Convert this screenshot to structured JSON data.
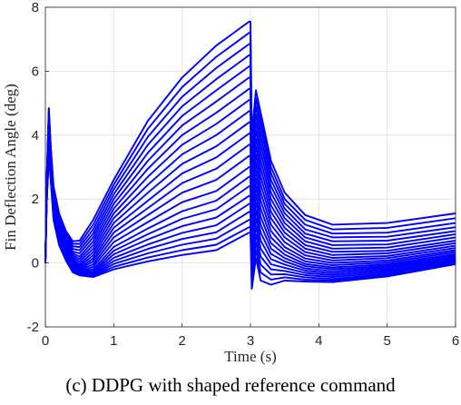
{
  "caption": "(c) DDPG with shaped reference command",
  "chart_data": {
    "type": "line",
    "title": "",
    "xlabel": "Time (s)",
    "ylabel": "Fin Deflection Angle (deg)",
    "xlim": [
      0,
      6
    ],
    "ylim": [
      -2,
      8
    ],
    "xticks": [
      0,
      1,
      2,
      3,
      4,
      5,
      6
    ],
    "yticks": [
      -2,
      0,
      2,
      4,
      6,
      8
    ],
    "grid": true,
    "legend": "none",
    "line_color": "#0000ff",
    "series_count": 22,
    "series_summary": {
      "x_break": 3.0,
      "peak_at_break": [
        1.0,
        7.55
      ],
      "initial_spike_peak": 4.85,
      "second_peak_after_break_max": 5.4,
      "value_at_x6": [
        0.0,
        1.55
      ]
    },
    "x": [
      0,
      0.02,
      0.05,
      0.08,
      0.12,
      0.2,
      0.3,
      0.4,
      0.5,
      0.7,
      1.0,
      1.5,
      2.0,
      2.5,
      2.98,
      3.0,
      3.02,
      3.08,
      3.15,
      3.3,
      3.5,
      3.8,
      4.2,
      5.0,
      6.0
    ],
    "series": [
      {
        "values": [
          0,
          2.6,
          4.85,
          3.6,
          2.4,
          1.55,
          1.0,
          0.68,
          0.7,
          1.35,
          2.6,
          4.45,
          5.8,
          6.8,
          7.55,
          7.55,
          4.0,
          5.4,
          4.7,
          3.2,
          2.2,
          1.5,
          1.2,
          1.25,
          1.55
        ]
      },
      {
        "values": [
          0,
          2.6,
          4.8,
          3.55,
          2.35,
          1.5,
          0.95,
          0.6,
          0.6,
          1.2,
          2.45,
          4.2,
          5.5,
          6.45,
          7.2,
          7.2,
          3.8,
          5.15,
          4.45,
          3.0,
          2.0,
          1.35,
          1.05,
          1.1,
          1.4
        ]
      },
      {
        "values": [
          0,
          2.55,
          4.7,
          3.5,
          2.3,
          1.45,
          0.9,
          0.52,
          0.5,
          1.05,
          2.3,
          3.95,
          5.2,
          6.1,
          6.85,
          6.85,
          3.55,
          4.9,
          4.2,
          2.8,
          1.85,
          1.2,
          0.92,
          0.95,
          1.25
        ]
      },
      {
        "values": [
          0,
          2.5,
          4.6,
          3.45,
          2.25,
          1.4,
          0.85,
          0.44,
          0.4,
          0.92,
          2.15,
          3.7,
          4.9,
          5.75,
          6.5,
          6.5,
          3.3,
          4.65,
          3.95,
          2.6,
          1.7,
          1.05,
          0.8,
          0.82,
          1.12
        ]
      },
      {
        "values": [
          0,
          2.5,
          4.5,
          3.4,
          2.2,
          1.35,
          0.8,
          0.36,
          0.3,
          0.8,
          2.0,
          3.45,
          4.6,
          5.4,
          6.15,
          6.15,
          3.05,
          4.4,
          3.7,
          2.4,
          1.55,
          0.92,
          0.68,
          0.7,
          1.0
        ]
      },
      {
        "values": [
          0,
          2.45,
          4.4,
          3.35,
          2.15,
          1.3,
          0.75,
          0.3,
          0.2,
          0.68,
          1.85,
          3.2,
          4.3,
          5.05,
          5.8,
          5.8,
          2.8,
          4.15,
          3.45,
          2.2,
          1.4,
          0.8,
          0.56,
          0.58,
          0.9
        ]
      },
      {
        "values": [
          0,
          2.4,
          4.3,
          3.3,
          2.1,
          1.25,
          0.7,
          0.24,
          0.12,
          0.56,
          1.7,
          2.95,
          4.0,
          4.7,
          5.45,
          5.45,
          2.55,
          3.9,
          3.2,
          2.0,
          1.25,
          0.68,
          0.45,
          0.48,
          0.8
        ]
      },
      {
        "values": [
          0,
          2.4,
          4.2,
          3.25,
          2.05,
          1.2,
          0.65,
          0.18,
          0.04,
          0.45,
          1.55,
          2.7,
          3.7,
          4.35,
          5.1,
          5.1,
          2.3,
          3.65,
          2.95,
          1.8,
          1.1,
          0.56,
          0.35,
          0.38,
          0.7
        ]
      },
      {
        "values": [
          0,
          2.35,
          4.1,
          3.2,
          2.0,
          1.15,
          0.6,
          0.12,
          -0.04,
          0.34,
          1.4,
          2.45,
          3.4,
          4.0,
          4.75,
          4.75,
          2.05,
          3.4,
          2.7,
          1.6,
          0.95,
          0.45,
          0.25,
          0.3,
          0.62
        ]
      },
      {
        "values": [
          0,
          2.3,
          4.0,
          3.15,
          1.95,
          1.1,
          0.55,
          0.07,
          -0.1,
          0.24,
          1.25,
          2.2,
          3.1,
          3.65,
          4.4,
          4.4,
          1.8,
          3.15,
          2.45,
          1.4,
          0.8,
          0.34,
          0.16,
          0.22,
          0.54
        ]
      },
      {
        "values": [
          0,
          2.3,
          3.9,
          3.1,
          1.9,
          1.05,
          0.5,
          0.02,
          -0.16,
          0.14,
          1.1,
          1.95,
          2.8,
          3.3,
          4.05,
          4.05,
          1.55,
          2.9,
          2.2,
          1.2,
          0.65,
          0.24,
          0.08,
          0.15,
          0.47
        ]
      },
      {
        "values": [
          0,
          2.25,
          3.85,
          3.05,
          1.85,
          1.0,
          0.45,
          -0.02,
          -0.2,
          0.05,
          0.95,
          1.72,
          2.5,
          2.95,
          3.7,
          3.7,
          1.3,
          2.65,
          1.95,
          1.0,
          0.5,
          0.14,
          0.0,
          0.08,
          0.4
        ]
      },
      {
        "values": [
          0,
          2.2,
          3.8,
          3.0,
          1.8,
          0.95,
          0.4,
          -0.06,
          -0.24,
          -0.04,
          0.8,
          1.5,
          2.2,
          2.6,
          3.35,
          3.35,
          1.05,
          2.4,
          1.7,
          0.8,
          0.38,
          0.05,
          -0.07,
          0.02,
          0.34
        ]
      },
      {
        "values": [
          0,
          2.2,
          3.75,
          2.95,
          1.75,
          0.9,
          0.36,
          -0.1,
          -0.28,
          -0.12,
          0.65,
          1.28,
          1.9,
          2.25,
          3.0,
          3.0,
          0.8,
          2.15,
          1.45,
          0.62,
          0.26,
          -0.03,
          -0.14,
          -0.04,
          0.28
        ]
      },
      {
        "values": [
          0,
          2.15,
          3.7,
          2.9,
          1.7,
          0.85,
          0.32,
          -0.13,
          -0.3,
          -0.2,
          0.5,
          1.08,
          1.62,
          1.95,
          2.7,
          2.7,
          0.6,
          1.9,
          1.2,
          0.45,
          0.15,
          -0.1,
          -0.2,
          -0.09,
          0.23
        ]
      },
      {
        "values": [
          0,
          2.1,
          3.65,
          2.85,
          1.65,
          0.8,
          0.28,
          -0.16,
          -0.32,
          -0.26,
          0.38,
          0.9,
          1.38,
          1.68,
          2.4,
          2.4,
          0.4,
          1.65,
          0.95,
          0.28,
          0.05,
          -0.17,
          -0.26,
          -0.14,
          0.18
        ]
      },
      {
        "values": [
          0,
          2.1,
          3.6,
          2.8,
          1.6,
          0.76,
          0.24,
          -0.19,
          -0.34,
          -0.31,
          0.27,
          0.74,
          1.15,
          1.42,
          2.1,
          2.1,
          0.2,
          1.4,
          0.7,
          0.12,
          -0.05,
          -0.24,
          -0.32,
          -0.19,
          0.13
        ]
      },
      {
        "values": [
          0,
          2.05,
          3.55,
          2.75,
          1.55,
          0.72,
          0.2,
          -0.21,
          -0.35,
          -0.35,
          0.16,
          0.58,
          0.94,
          1.18,
          1.85,
          1.85,
          0.0,
          1.15,
          0.45,
          -0.04,
          -0.15,
          -0.31,
          -0.38,
          -0.24,
          0.09
        ]
      },
      {
        "values": [
          0,
          2.0,
          3.5,
          2.7,
          1.5,
          0.68,
          0.17,
          -0.23,
          -0.36,
          -0.38,
          0.06,
          0.44,
          0.75,
          0.96,
          1.6,
          1.6,
          -0.2,
          0.9,
          0.2,
          -0.2,
          -0.25,
          -0.38,
          -0.44,
          -0.29,
          0.05
        ]
      },
      {
        "values": [
          0,
          2.0,
          3.45,
          2.65,
          1.45,
          0.64,
          0.14,
          -0.25,
          -0.37,
          -0.4,
          -0.03,
          0.3,
          0.57,
          0.76,
          1.35,
          1.35,
          -0.4,
          0.65,
          -0.05,
          -0.36,
          -0.35,
          -0.45,
          -0.5,
          -0.34,
          0.02
        ]
      },
      {
        "values": [
          0,
          1.95,
          3.4,
          2.6,
          1.4,
          0.6,
          0.11,
          -0.27,
          -0.38,
          -0.42,
          -0.12,
          0.17,
          0.4,
          0.57,
          1.12,
          1.12,
          -0.6,
          0.4,
          -0.3,
          -0.52,
          -0.45,
          -0.52,
          -0.55,
          -0.38,
          -0.01
        ]
      },
      {
        "values": [
          0,
          1.9,
          3.35,
          2.55,
          1.35,
          0.56,
          0.08,
          -0.29,
          -0.39,
          -0.44,
          -0.2,
          0.05,
          0.25,
          0.4,
          0.95,
          0.95,
          -0.8,
          0.15,
          -0.55,
          -0.68,
          -0.55,
          -0.58,
          -0.6,
          -0.42,
          -0.04
        ]
      }
    ]
  }
}
